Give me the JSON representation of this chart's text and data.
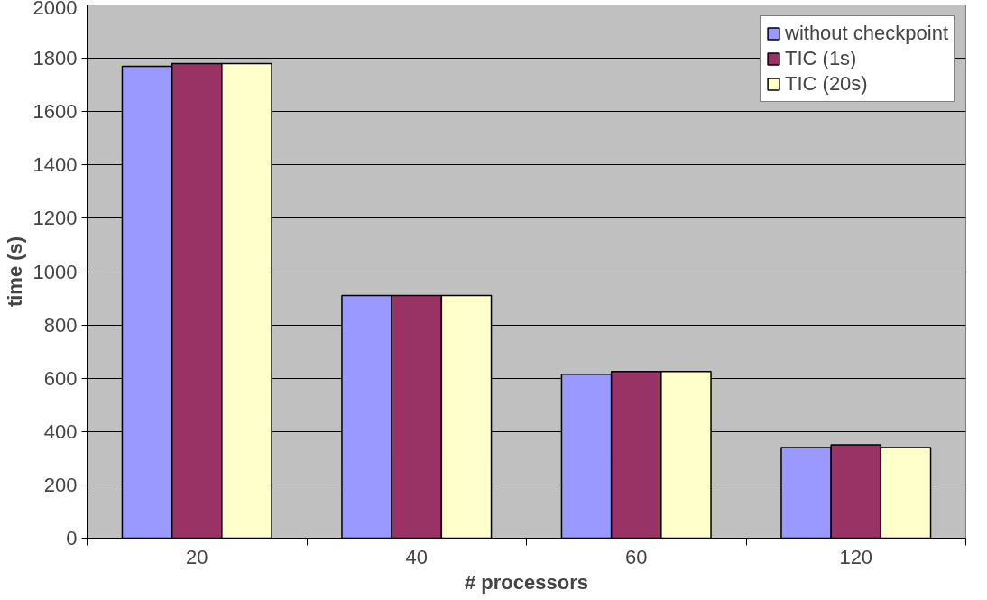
{
  "chart_data": {
    "type": "bar",
    "xlabel": "# processors",
    "ylabel": "time (s)",
    "categories": [
      "20",
      "40",
      "60",
      "120"
    ],
    "series": [
      {
        "name": "without checkpoint",
        "color": "#9999ff",
        "values": [
          1770,
          910,
          615,
          340
        ]
      },
      {
        "name": "TIC (1s)",
        "color": "#993366",
        "values": [
          1780,
          910,
          625,
          350
        ]
      },
      {
        "name": "TIC (20s)",
        "color": "#ffffcc",
        "values": [
          1780,
          910,
          625,
          340
        ]
      }
    ],
    "ylim": [
      0,
      2000
    ],
    "yticks": [
      0,
      200,
      400,
      600,
      800,
      1000,
      1200,
      1400,
      1600,
      1800,
      2000
    ],
    "grid": "y",
    "legend": "top right"
  }
}
